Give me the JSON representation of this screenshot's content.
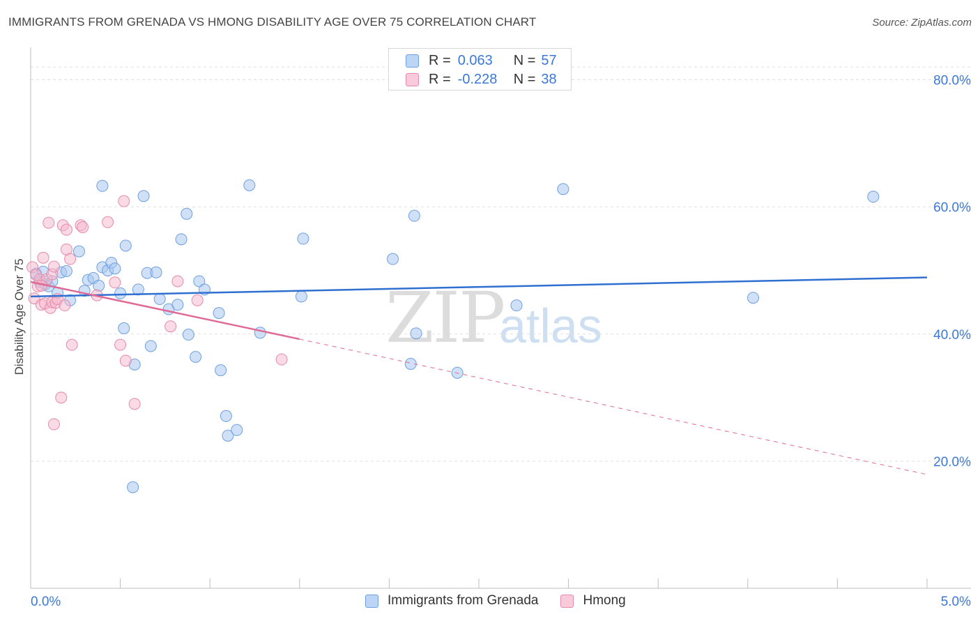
{
  "title": "IMMIGRANTS FROM GRENADA VS HMONG DISABILITY AGE OVER 75 CORRELATION CHART",
  "source": {
    "label": "Source: ",
    "site": "ZipAtlas.com"
  },
  "watermark": {
    "zip": "ZIP",
    "atlas": "atlas"
  },
  "legend": {
    "rows": [
      {
        "r_label": "R =",
        "r_value": "0.063",
        "n_label": "N =",
        "n_value": "57",
        "color": "#a9c8f0"
      },
      {
        "r_label": "R =",
        "r_value": "-0.228",
        "n_label": "N =",
        "n_value": "38",
        "color": "#f6b8cc"
      }
    ]
  },
  "bottom_legend": [
    {
      "label": "Immigrants from Grenada",
      "color": "#a9c8f0"
    },
    {
      "label": "Hmong",
      "color": "#f6b8cc"
    }
  ],
  "colors": {
    "blue_fill": "#a9c8f0",
    "blue_stroke": "#6d9fe0",
    "blue_line": "#2f6fd0",
    "pink_fill": "#f6b8cc",
    "pink_stroke": "#e58aa8",
    "pink_line": "#e06a95",
    "axis_text": "#3a78d8",
    "grid": "#e0e0e0"
  },
  "chart_data": {
    "type": "scatter",
    "title": "IMMIGRANTS FROM GRENADA VS HMONG DISABILITY AGE OVER 75 CORRELATION CHART",
    "xlabel": "",
    "ylabel": "Disability Age Over 75",
    "xlim": [
      0.0,
      5.0
    ],
    "ylim": [
      0.0,
      84.0
    ],
    "x_tick_labels": [
      "0.0%",
      "5.0%"
    ],
    "x_ticks": [
      0.0,
      5.0
    ],
    "y_ticks": [
      20.0,
      40.0,
      60.0,
      80.0
    ],
    "y_tick_labels": [
      "20.0%",
      "40.0%",
      "60.0%",
      "80.0%"
    ],
    "grid": true,
    "series": [
      {
        "name": "Immigrants from Grenada",
        "color": "#a9c8f0",
        "R": 0.063,
        "N": 57,
        "trend": {
          "x": [
            0.0,
            5.0
          ],
          "y": [
            45.9,
            48.9
          ],
          "style": "solid"
        },
        "points": [
          [
            0.03,
            49.5
          ],
          [
            0.05,
            48.2
          ],
          [
            0.07,
            49.8
          ],
          [
            0.08,
            47.8
          ],
          [
            0.1,
            47.5
          ],
          [
            0.12,
            48.3
          ],
          [
            0.15,
            46.5
          ],
          [
            0.17,
            49.7
          ],
          [
            0.2,
            49.9
          ],
          [
            0.22,
            45.3
          ],
          [
            0.27,
            53.0
          ],
          [
            0.3,
            46.8
          ],
          [
            0.32,
            48.5
          ],
          [
            0.35,
            48.8
          ],
          [
            0.38,
            47.6
          ],
          [
            0.4,
            50.5
          ],
          [
            0.4,
            63.3
          ],
          [
            0.43,
            50.0
          ],
          [
            0.45,
            51.2
          ],
          [
            0.47,
            50.3
          ],
          [
            0.5,
            46.4
          ],
          [
            0.52,
            40.9
          ],
          [
            0.53,
            53.9
          ],
          [
            0.58,
            35.2
          ],
          [
            0.6,
            47.0
          ],
          [
            0.63,
            61.7
          ],
          [
            0.65,
            49.6
          ],
          [
            0.67,
            38.1
          ],
          [
            0.7,
            49.7
          ],
          [
            0.72,
            45.5
          ],
          [
            0.77,
            43.9
          ],
          [
            0.82,
            44.6
          ],
          [
            0.84,
            54.9
          ],
          [
            0.87,
            58.9
          ],
          [
            0.88,
            39.9
          ],
          [
            0.92,
            36.4
          ],
          [
            0.94,
            48.3
          ],
          [
            0.97,
            47.0
          ],
          [
            1.05,
            43.3
          ],
          [
            1.06,
            34.3
          ],
          [
            1.09,
            27.1
          ],
          [
            1.1,
            24.0
          ],
          [
            1.15,
            24.9
          ],
          [
            1.22,
            63.4
          ],
          [
            1.28,
            40.2
          ],
          [
            0.57,
            15.9
          ],
          [
            1.52,
            55.0
          ],
          [
            1.51,
            45.9
          ],
          [
            2.02,
            51.8
          ],
          [
            2.14,
            58.6
          ],
          [
            2.12,
            35.3
          ],
          [
            2.15,
            40.1
          ],
          [
            2.38,
            33.9
          ],
          [
            2.71,
            44.5
          ],
          [
            2.97,
            62.8
          ],
          [
            4.03,
            45.7
          ],
          [
            4.7,
            61.6
          ]
        ]
      },
      {
        "name": "Hmong",
        "color": "#f6b8cc",
        "R": -0.228,
        "N": 38,
        "trend": {
          "x": [
            0.0,
            1.5
          ],
          "y": [
            48.2,
            39.2
          ],
          "style": "solid"
        },
        "trend_extension": {
          "x": [
            1.5,
            5.0
          ],
          "y": [
            39.2,
            17.9
          ],
          "style": "dashed"
        },
        "points": [
          [
            0.01,
            50.5
          ],
          [
            0.02,
            45.6
          ],
          [
            0.03,
            49.3
          ],
          [
            0.04,
            47.5
          ],
          [
            0.05,
            48.6
          ],
          [
            0.06,
            44.6
          ],
          [
            0.07,
            52.0
          ],
          [
            0.08,
            44.8
          ],
          [
            0.09,
            48.6
          ],
          [
            0.1,
            57.5
          ],
          [
            0.11,
            44.1
          ],
          [
            0.12,
            45.0
          ],
          [
            0.12,
            49.4
          ],
          [
            0.13,
            50.6
          ],
          [
            0.14,
            44.9
          ],
          [
            0.15,
            45.5
          ],
          [
            0.17,
            30.0
          ],
          [
            0.18,
            57.1
          ],
          [
            0.19,
            44.5
          ],
          [
            0.2,
            53.3
          ],
          [
            0.2,
            56.4
          ],
          [
            0.22,
            51.8
          ],
          [
            0.23,
            38.3
          ],
          [
            0.28,
            57.1
          ],
          [
            0.29,
            56.8
          ],
          [
            0.37,
            46.1
          ],
          [
            0.43,
            57.6
          ],
          [
            0.47,
            48.1
          ],
          [
            0.5,
            38.3
          ],
          [
            0.52,
            60.9
          ],
          [
            0.53,
            35.8
          ],
          [
            0.58,
            29.0
          ],
          [
            0.78,
            41.2
          ],
          [
            0.82,
            48.3
          ],
          [
            0.93,
            45.3
          ],
          [
            1.4,
            36.0
          ],
          [
            0.13,
            25.8
          ],
          [
            0.06,
            47.6
          ]
        ]
      }
    ]
  }
}
